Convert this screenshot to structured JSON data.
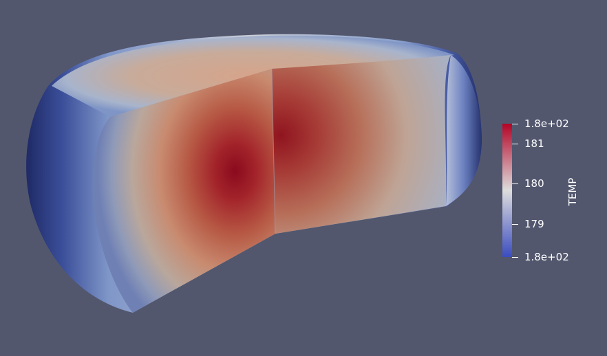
{
  "colors": {
    "background": "#52576e",
    "cold": "#3b4cc0",
    "neutral": "#dddddd",
    "hot": "#b40426",
    "darkest_hot": "#8b0a1e",
    "darkest_cold": "#1f2a66"
  },
  "colorbar": {
    "title": "TEMP",
    "ticks": [
      {
        "label": "1.8e+02",
        "level": 1.0
      },
      {
        "label": "181",
        "level": 0.85
      },
      {
        "label": "180",
        "level": 0.55
      },
      {
        "label": "179",
        "level": 0.25
      },
      {
        "label": "1.8e+02",
        "level": 0.0
      }
    ]
  }
}
